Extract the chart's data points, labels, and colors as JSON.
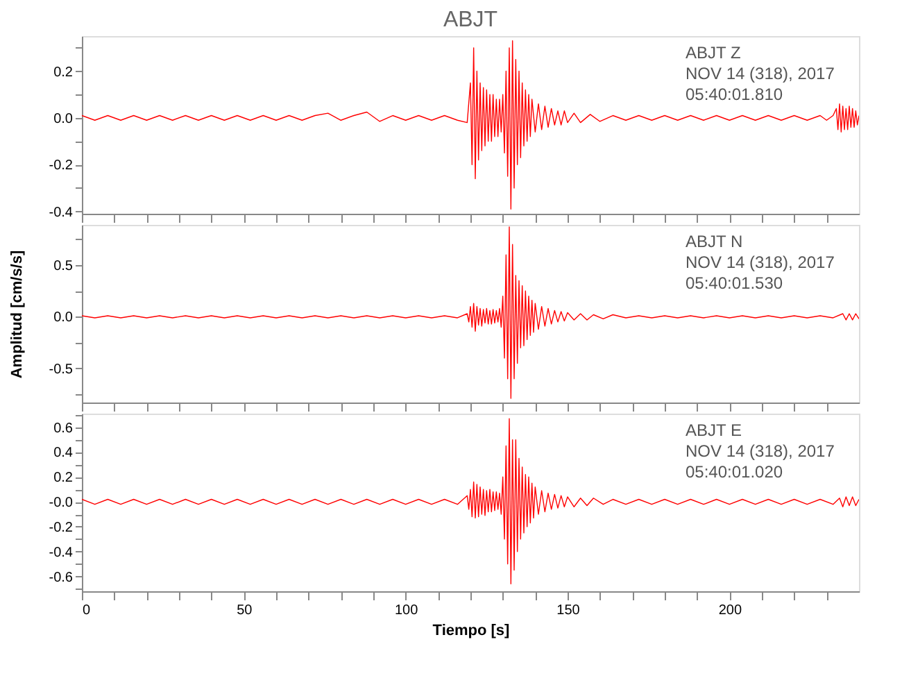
{
  "chart_data": [
    {
      "type": "line",
      "title": "ABJT",
      "xlim": [
        0,
        240
      ],
      "xticks": [
        0,
        {
          "value": 10,
          "label": null
        },
        {
          "value": 20,
          "label": null
        },
        {
          "value": 30,
          "label": null
        },
        {
          "value": 40,
          "label": null
        },
        50,
        {
          "value": 60,
          "label": null
        },
        {
          "value": 70,
          "label": null
        },
        {
          "value": 80,
          "label": null
        },
        {
          "value": 90,
          "label": null
        },
        100,
        {
          "value": 110,
          "label": null
        },
        {
          "value": 120,
          "label": null
        },
        {
          "value": 130,
          "label": null
        },
        {
          "value": 140,
          "label": null
        },
        150,
        {
          "value": 160,
          "label": null
        },
        {
          "value": 170,
          "label": null
        },
        {
          "value": 180,
          "label": null
        },
        {
          "value": 190,
          "label": null
        },
        200,
        {
          "value": 210,
          "label": null
        },
        {
          "value": 220,
          "label": null
        },
        {
          "value": 230,
          "label": null
        }
      ],
      "ylim": [
        -0.41,
        0.35
      ],
      "yticks": [
        -0.4,
        {
          "value": -0.3,
          "label": null
        },
        -0.2,
        {
          "value": -0.1,
          "label": null
        },
        {
          "value": 0,
          "label": "0.0"
        },
        {
          "value": 0.1,
          "label": null
        },
        0.2,
        {
          "value": 0.3,
          "label": null
        }
      ],
      "tick_labels": "y",
      "grid": false,
      "annotations": [
        "ABJT Z",
        "NOV 14 (318), 2017",
        "05:40:01.810"
      ],
      "series": [
        {
          "color": "#ff0000",
          "x": [
            0,
            4,
            8,
            12,
            16,
            20,
            24,
            28,
            32,
            36,
            40,
            44,
            48,
            52,
            56,
            60,
            64,
            68,
            72,
            76,
            80,
            84,
            88,
            92,
            96,
            100,
            104,
            108,
            112,
            116,
            119,
            120,
            120.5,
            121,
            121.5,
            122,
            122.5,
            123,
            123.5,
            124,
            124.5,
            125,
            125.5,
            126,
            126.5,
            127,
            127.5,
            128,
            128.5,
            129,
            129.5,
            130,
            130.5,
            131,
            131.5,
            132,
            132.5,
            133,
            133.5,
            134,
            134.5,
            135,
            135.5,
            136,
            136.5,
            137,
            137.5,
            138,
            138.5,
            139,
            140,
            141,
            142,
            143,
            144,
            145,
            146,
            147,
            148,
            149,
            150,
            152,
            154,
            157,
            160,
            164,
            168,
            172,
            176,
            180,
            184,
            188,
            192,
            196,
            200,
            204,
            208,
            212,
            216,
            220,
            224,
            228,
            230,
            232,
            233,
            233.5,
            234,
            234.5,
            235,
            235.5,
            236,
            236.5,
            237,
            237.5,
            238,
            238.5,
            239,
            239.5,
            240
          ],
          "values": [
            0.01,
            -0.01,
            0.01,
            -0.01,
            0.01,
            -0.01,
            0.01,
            -0.01,
            0.01,
            -0.01,
            0.01,
            -0.01,
            0.01,
            -0.01,
            0.01,
            -0.01,
            0.01,
            -0.01,
            0.01,
            0.02,
            -0.01,
            0.01,
            0.025,
            -0.015,
            0.01,
            -0.01,
            0.01,
            -0.01,
            0.01,
            -0.01,
            -0.02,
            0.15,
            -0.2,
            0.3,
            -0.26,
            0.2,
            -0.18,
            0.15,
            -0.14,
            0.13,
            -0.12,
            0.12,
            -0.1,
            0.1,
            -0.1,
            0.1,
            -0.08,
            0.08,
            -0.08,
            0.08,
            -0.06,
            0.1,
            -0.15,
            0.2,
            -0.25,
            0.3,
            -0.39,
            0.33,
            -0.3,
            0.25,
            -0.2,
            0.2,
            -0.17,
            0.15,
            -0.12,
            0.12,
            -0.1,
            0.1,
            -0.08,
            0.08,
            -0.06,
            0.06,
            -0.05,
            0.05,
            -0.04,
            0.04,
            -0.03,
            0.03,
            -0.03,
            0.03,
            -0.02,
            0.02,
            -0.02,
            0.015,
            -0.015,
            0.01,
            -0.01,
            0.01,
            -0.01,
            0.01,
            -0.01,
            0.01,
            -0.01,
            0.01,
            -0.01,
            0.01,
            -0.01,
            0.01,
            -0.01,
            0.01,
            -0.01,
            0.01,
            -0.01,
            0.01,
            0.04,
            -0.05,
            0.06,
            -0.06,
            0.05,
            -0.05,
            0.04,
            -0.05,
            0.05,
            -0.04,
            0.04,
            -0.04,
            0.03,
            -0.03,
            0.01
          ]
        }
      ]
    },
    {
      "type": "line",
      "ylabel": "Amplitud [cm/s/s]",
      "xlim": [
        0,
        240
      ],
      "xticks": [
        0,
        {
          "value": 10,
          "label": null
        },
        {
          "value": 20,
          "label": null
        },
        {
          "value": 30,
          "label": null
        },
        {
          "value": 40,
          "label": null
        },
        50,
        {
          "value": 60,
          "label": null
        },
        {
          "value": 70,
          "label": null
        },
        {
          "value": 80,
          "label": null
        },
        {
          "value": 90,
          "label": null
        },
        100,
        {
          "value": 110,
          "label": null
        },
        {
          "value": 120,
          "label": null
        },
        {
          "value": 130,
          "label": null
        },
        {
          "value": 140,
          "label": null
        },
        150,
        {
          "value": 160,
          "label": null
        },
        {
          "value": 170,
          "label": null
        },
        {
          "value": 180,
          "label": null
        },
        {
          "value": 190,
          "label": null
        },
        200,
        {
          "value": 210,
          "label": null
        },
        {
          "value": 220,
          "label": null
        },
        {
          "value": 230,
          "label": null
        }
      ],
      "ylim": [
        -0.83,
        0.89
      ],
      "yticks": [
        {
          "value": -0.75,
          "label": null
        },
        -0.5,
        {
          "value": -0.25,
          "label": null
        },
        {
          "value": 0,
          "label": "0.0"
        },
        {
          "value": 0.25,
          "label": null
        },
        0.5,
        {
          "value": 0.75,
          "label": null
        }
      ],
      "tick_labels": "y",
      "grid": false,
      "annotations": [
        "ABJT N",
        "NOV 14 (318), 2017",
        "05:40:01.530"
      ],
      "series": [
        {
          "color": "#ff0000",
          "x": [
            0,
            4,
            8,
            12,
            16,
            20,
            24,
            28,
            32,
            36,
            40,
            44,
            48,
            52,
            56,
            60,
            64,
            68,
            72,
            76,
            80,
            84,
            88,
            92,
            96,
            100,
            104,
            108,
            112,
            116,
            119,
            119.5,
            120,
            120.5,
            121,
            121.5,
            122,
            122.5,
            123,
            123.5,
            124,
            124.5,
            125,
            125.5,
            126,
            126.5,
            127,
            127.5,
            128,
            128.5,
            129,
            129.5,
            130,
            130.5,
            131,
            131.5,
            132,
            132.5,
            133,
            133.5,
            134,
            134.5,
            135,
            135.5,
            136,
            136.5,
            137,
            137.5,
            138,
            138.5,
            139,
            139.5,
            140,
            141,
            142,
            143,
            144,
            145,
            146,
            147,
            148,
            149,
            150,
            152,
            154,
            156,
            158,
            161,
            164,
            168,
            172,
            176,
            180,
            184,
            188,
            192,
            196,
            200,
            204,
            208,
            212,
            216,
            220,
            224,
            228,
            232,
            235,
            236,
            237,
            238,
            239,
            240
          ],
          "values": [
            0.01,
            -0.01,
            0.01,
            -0.01,
            0.01,
            -0.01,
            0.01,
            -0.01,
            0.01,
            -0.01,
            0.01,
            -0.01,
            0.01,
            -0.01,
            0.01,
            -0.01,
            0.01,
            -0.01,
            0.01,
            -0.01,
            0.01,
            -0.01,
            0.01,
            -0.01,
            0.01,
            -0.01,
            0.01,
            -0.01,
            0.01,
            -0.01,
            0.03,
            -0.05,
            0.1,
            -0.1,
            0.13,
            -0.14,
            0.1,
            -0.08,
            0.08,
            -0.09,
            0.07,
            -0.06,
            0.08,
            -0.07,
            0.06,
            -0.07,
            0.07,
            -0.06,
            0.06,
            -0.05,
            0.08,
            -0.1,
            0.2,
            -0.4,
            0.6,
            -0.6,
            0.87,
            -0.79,
            0.7,
            -0.6,
            0.4,
            -0.45,
            0.35,
            -0.3,
            0.3,
            -0.28,
            0.25,
            -0.22,
            0.2,
            -0.18,
            0.16,
            -0.15,
            0.13,
            -0.12,
            0.1,
            -0.09,
            0.08,
            -0.07,
            0.06,
            -0.05,
            0.05,
            -0.04,
            0.04,
            -0.03,
            0.03,
            -0.03,
            0.02,
            -0.02,
            0.02,
            -0.01,
            0.01,
            -0.01,
            0.01,
            -0.01,
            0.01,
            -0.01,
            0.01,
            -0.01,
            0.01,
            -0.01,
            0.01,
            -0.01,
            0.01,
            -0.01,
            0.01,
            -0.01,
            0.03,
            -0.03,
            0.03,
            -0.03,
            0.03,
            -0.02
          ]
        }
      ]
    },
    {
      "type": "line",
      "xlabel": "Tiempo [s]",
      "xlim": [
        0,
        240
      ],
      "xticks": [
        0,
        {
          "value": 10,
          "label": null
        },
        {
          "value": 20,
          "label": null
        },
        {
          "value": 30,
          "label": null
        },
        {
          "value": 40,
          "label": null
        },
        50,
        {
          "value": 60,
          "label": null
        },
        {
          "value": 70,
          "label": null
        },
        {
          "value": 80,
          "label": null
        },
        {
          "value": 90,
          "label": null
        },
        100,
        {
          "value": 110,
          "label": null
        },
        {
          "value": 120,
          "label": null
        },
        {
          "value": 130,
          "label": null
        },
        {
          "value": 140,
          "label": null
        },
        150,
        {
          "value": 160,
          "label": null
        },
        {
          "value": 170,
          "label": null
        },
        {
          "value": 180,
          "label": null
        },
        {
          "value": 190,
          "label": null
        },
        200,
        {
          "value": 210,
          "label": null
        },
        {
          "value": 220,
          "label": null
        },
        {
          "value": 230,
          "label": null
        }
      ],
      "ylim": [
        -0.72,
        0.71
      ],
      "yticks": [
        {
          "value": -0.7,
          "label": null
        },
        -0.6,
        {
          "value": -0.5,
          "label": null
        },
        -0.4,
        {
          "value": -0.3,
          "label": null
        },
        -0.2,
        {
          "value": -0.1,
          "label": null
        },
        {
          "value": 0,
          "label": "-0.0"
        },
        {
          "value": 0.1,
          "label": null
        },
        0.2,
        {
          "value": 0.3,
          "label": null
        },
        0.4,
        {
          "value": 0.5,
          "label": null
        },
        0.6,
        {
          "value": 0.7,
          "label": null
        }
      ],
      "grid": false,
      "annotations": [
        "ABJT E",
        "NOV 14 (318), 2017",
        "05:40:01.020"
      ],
      "series": [
        {
          "color": "#ff0000",
          "x": [
            0,
            4,
            8,
            12,
            16,
            20,
            24,
            28,
            32,
            36,
            40,
            44,
            48,
            52,
            56,
            60,
            64,
            68,
            72,
            76,
            80,
            84,
            88,
            92,
            96,
            100,
            104,
            108,
            112,
            116,
            119,
            119.5,
            120,
            120.5,
            121,
            121.5,
            122,
            122.5,
            123,
            123.5,
            124,
            124.5,
            125,
            125.5,
            126,
            126.5,
            127,
            127.5,
            128,
            128.5,
            129,
            129.5,
            130,
            130.5,
            131,
            131.5,
            132,
            132.5,
            133,
            133.5,
            134,
            134.5,
            135,
            135.5,
            136,
            136.5,
            137,
            137.5,
            138,
            138.5,
            139,
            139.5,
            140,
            141,
            142,
            143,
            144,
            145,
            146,
            147,
            148,
            149,
            150,
            152,
            154,
            156,
            158,
            161,
            164,
            168,
            172,
            176,
            180,
            184,
            188,
            192,
            196,
            200,
            204,
            208,
            212,
            216,
            220,
            224,
            228,
            232,
            234,
            235,
            236,
            237,
            238,
            239,
            240
          ],
          "values": [
            0.02,
            -0.02,
            0.02,
            -0.02,
            0.02,
            -0.02,
            0.02,
            -0.02,
            0.02,
            -0.02,
            0.02,
            -0.02,
            0.02,
            -0.02,
            0.02,
            -0.02,
            0.02,
            -0.02,
            0.02,
            -0.02,
            0.02,
            -0.02,
            0.02,
            -0.02,
            0.02,
            -0.02,
            0.02,
            -0.02,
            0.02,
            -0.02,
            0.05,
            -0.06,
            0.1,
            -0.12,
            0.16,
            -0.13,
            0.14,
            -0.12,
            0.12,
            -0.1,
            0.1,
            -0.11,
            0.09,
            -0.08,
            0.1,
            -0.08,
            0.08,
            -0.07,
            0.08,
            -0.06,
            0.07,
            -0.1,
            0.2,
            -0.3,
            0.45,
            -0.5,
            0.67,
            -0.66,
            0.5,
            -0.55,
            0.5,
            -0.4,
            0.35,
            -0.3,
            0.28,
            -0.25,
            0.22,
            -0.2,
            0.2,
            -0.17,
            0.15,
            -0.13,
            0.12,
            -0.1,
            0.09,
            -0.08,
            0.07,
            -0.06,
            0.06,
            -0.05,
            0.05,
            -0.04,
            0.04,
            -0.04,
            0.03,
            -0.03,
            0.03,
            -0.02,
            0.02,
            -0.02,
            0.02,
            -0.02,
            0.02,
            -0.02,
            0.02,
            -0.02,
            0.02,
            -0.02,
            0.02,
            -0.02,
            0.02,
            -0.02,
            0.02,
            -0.02,
            0.02,
            -0.02,
            0.03,
            -0.04,
            0.04,
            -0.03,
            0.04,
            -0.03,
            0.02
          ]
        }
      ]
    }
  ]
}
